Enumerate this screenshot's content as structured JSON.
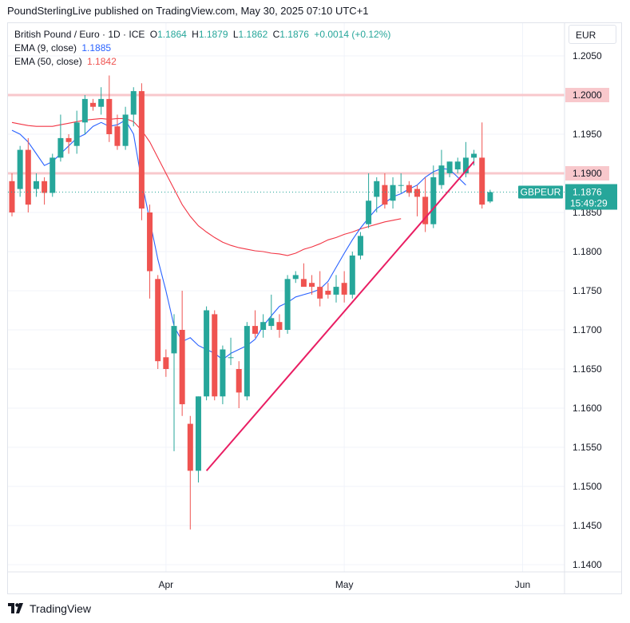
{
  "header": {
    "publish_text": "PoundSterlingLive published on TradingView.com, May 30, 2025 07:10 UTC+1"
  },
  "legend": {
    "symbol": "British Pound / Euro · 1D · ICE",
    "o_label": "O",
    "o_value": "1.1864",
    "h_label": "H",
    "h_value": "1.1879",
    "l_label": "L",
    "l_value": "1.1862",
    "c_label": "C",
    "c_value": "1.1876",
    "change": "+0.0014 (+0.12%)",
    "ema9_label": "EMA (9, close)",
    "ema9_value": "1.1885",
    "ema50_label": "EMA (50, close)",
    "ema50_value": "1.1842"
  },
  "currency": "EUR",
  "footer": {
    "brand": "TradingView"
  },
  "colors": {
    "up": "#26a69a",
    "down": "#ef5350",
    "ema9": "#2962ff",
    "ema50": "#f23645",
    "hline": "#f8c8cc",
    "trendline": "#e91e63",
    "grid": "#f0f3fa"
  },
  "chart_data": {
    "type": "candlestick",
    "ylim": [
      1.138,
      1.213
    ],
    "y_ticks": [
      "1.2050",
      "1.2000",
      "1.1950",
      "1.1900",
      "1.1850",
      "1.1800",
      "1.1750",
      "1.1700",
      "1.1650",
      "1.1600",
      "1.1550",
      "1.1500",
      "1.1450",
      "1.1400"
    ],
    "x_ticks": [
      {
        "label": "Apr",
        "index": 19
      },
      {
        "label": "May",
        "index": 41
      },
      {
        "label": "Jun",
        "index": 63
      }
    ],
    "candles": [
      {
        "o": 1.189,
        "h": 1.19,
        "l": 1.1845,
        "c": 1.185
      },
      {
        "o": 1.188,
        "h": 1.1935,
        "l": 1.187,
        "c": 1.193
      },
      {
        "o": 1.193,
        "h": 1.1945,
        "l": 1.185,
        "c": 1.186
      },
      {
        "o": 1.188,
        "h": 1.19,
        "l": 1.187,
        "c": 1.189
      },
      {
        "o": 1.189,
        "h": 1.1895,
        "l": 1.186,
        "c": 1.1875
      },
      {
        "o": 1.1875,
        "h": 1.1925,
        "l": 1.187,
        "c": 1.192
      },
      {
        "o": 1.192,
        "h": 1.1975,
        "l": 1.1915,
        "c": 1.1945
      },
      {
        "o": 1.1945,
        "h": 1.195,
        "l": 1.1925,
        "c": 1.194
      },
      {
        "o": 1.1935,
        "h": 1.198,
        "l": 1.1925,
        "c": 1.1965
      },
      {
        "o": 1.1965,
        "h": 1.2,
        "l": 1.195,
        "c": 1.1995
      },
      {
        "o": 1.199,
        "h": 1.1995,
        "l": 1.198,
        "c": 1.1985
      },
      {
        "o": 1.1985,
        "h": 1.201,
        "l": 1.1975,
        "c": 1.1995
      },
      {
        "o": 1.1995,
        "h": 1.2025,
        "l": 1.194,
        "c": 1.195
      },
      {
        "o": 1.196,
        "h": 1.1975,
        "l": 1.193,
        "c": 1.1935
      },
      {
        "o": 1.1935,
        "h": 1.1985,
        "l": 1.193,
        "c": 1.1975
      },
      {
        "o": 1.1975,
        "h": 1.201,
        "l": 1.196,
        "c": 1.2005
      },
      {
        "o": 1.2005,
        "h": 1.2015,
        "l": 1.184,
        "c": 1.1855
      },
      {
        "o": 1.185,
        "h": 1.186,
        "l": 1.174,
        "c": 1.1775
      },
      {
        "o": 1.1765,
        "h": 1.177,
        "l": 1.165,
        "c": 1.166
      },
      {
        "o": 1.1665,
        "h": 1.1675,
        "l": 1.164,
        "c": 1.165
      },
      {
        "o": 1.167,
        "h": 1.172,
        "l": 1.1545,
        "c": 1.1705
      },
      {
        "o": 1.17,
        "h": 1.175,
        "l": 1.159,
        "c": 1.1605
      },
      {
        "o": 1.158,
        "h": 1.159,
        "l": 1.1445,
        "c": 1.152
      },
      {
        "o": 1.152,
        "h": 1.1615,
        "l": 1.1505,
        "c": 1.1615
      },
      {
        "o": 1.1615,
        "h": 1.173,
        "l": 1.161,
        "c": 1.1725
      },
      {
        "o": 1.172,
        "h": 1.1725,
        "l": 1.161,
        "c": 1.1615
      },
      {
        "o": 1.1615,
        "h": 1.168,
        "l": 1.1605,
        "c": 1.1675
      },
      {
        "o": 1.1665,
        "h": 1.169,
        "l": 1.1655,
        "c": 1.1665
      },
      {
        "o": 1.165,
        "h": 1.166,
        "l": 1.16,
        "c": 1.162
      },
      {
        "o": 1.1615,
        "h": 1.171,
        "l": 1.161,
        "c": 1.1705
      },
      {
        "o": 1.1705,
        "h": 1.1725,
        "l": 1.169,
        "c": 1.1695
      },
      {
        "o": 1.17,
        "h": 1.172,
        "l": 1.169,
        "c": 1.171
      },
      {
        "o": 1.1705,
        "h": 1.1745,
        "l": 1.17,
        "c": 1.1715
      },
      {
        "o": 1.171,
        "h": 1.172,
        "l": 1.169,
        "c": 1.17
      },
      {
        "o": 1.17,
        "h": 1.177,
        "l": 1.1695,
        "c": 1.1765
      },
      {
        "o": 1.1765,
        "h": 1.1775,
        "l": 1.176,
        "c": 1.177
      },
      {
        "o": 1.1765,
        "h": 1.1785,
        "l": 1.176,
        "c": 1.1755
      },
      {
        "o": 1.176,
        "h": 1.177,
        "l": 1.1745,
        "c": 1.1755
      },
      {
        "o": 1.1755,
        "h": 1.1775,
        "l": 1.173,
        "c": 1.174
      },
      {
        "o": 1.175,
        "h": 1.176,
        "l": 1.174,
        "c": 1.1745
      },
      {
        "o": 1.1745,
        "h": 1.177,
        "l": 1.1735,
        "c": 1.1755
      },
      {
        "o": 1.176,
        "h": 1.1775,
        "l": 1.1735,
        "c": 1.1745
      },
      {
        "o": 1.1745,
        "h": 1.18,
        "l": 1.174,
        "c": 1.1795
      },
      {
        "o": 1.1795,
        "h": 1.1825,
        "l": 1.179,
        "c": 1.182
      },
      {
        "o": 1.1835,
        "h": 1.19,
        "l": 1.183,
        "c": 1.1865
      },
      {
        "o": 1.187,
        "h": 1.1895,
        "l": 1.185,
        "c": 1.189
      },
      {
        "o": 1.1885,
        "h": 1.19,
        "l": 1.1855,
        "c": 1.186
      },
      {
        "o": 1.1865,
        "h": 1.1895,
        "l": 1.1855,
        "c": 1.1885
      },
      {
        "o": 1.1885,
        "h": 1.19,
        "l": 1.1875,
        "c": 1.1885
      },
      {
        "o": 1.1885,
        "h": 1.189,
        "l": 1.187,
        "c": 1.1875
      },
      {
        "o": 1.188,
        "h": 1.1885,
        "l": 1.1845,
        "c": 1.187
      },
      {
        "o": 1.187,
        "h": 1.1895,
        "l": 1.1825,
        "c": 1.1835
      },
      {
        "o": 1.1835,
        "h": 1.191,
        "l": 1.183,
        "c": 1.1895
      },
      {
        "o": 1.1885,
        "h": 1.193,
        "l": 1.188,
        "c": 1.191
      },
      {
        "o": 1.19,
        "h": 1.1915,
        "l": 1.1895,
        "c": 1.1915
      },
      {
        "o": 1.1905,
        "h": 1.192,
        "l": 1.19,
        "c": 1.1915
      },
      {
        "o": 1.19,
        "h": 1.194,
        "l": 1.1895,
        "c": 1.192
      },
      {
        "o": 1.192,
        "h": 1.193,
        "l": 1.191,
        "c": 1.1925
      },
      {
        "o": 1.192,
        "h": 1.1965,
        "l": 1.1855,
        "c": 1.186
      },
      {
        "o": 1.1864,
        "h": 1.1879,
        "l": 1.1862,
        "c": 1.1876
      }
    ],
    "ema9": [
      1.1955,
      1.195,
      1.194,
      1.1925,
      1.191,
      1.1915,
      1.1925,
      1.1935,
      1.1945,
      1.195,
      1.196,
      1.1965,
      1.196,
      1.1962,
      1.1968,
      1.195,
      1.189,
      1.184,
      1.179,
      1.175,
      1.1705,
      1.1685,
      1.169,
      1.168,
      1.1675,
      1.167,
      1.1662,
      1.167,
      1.1675,
      1.168,
      1.1688,
      1.1705,
      1.1718,
      1.173,
      1.1735,
      1.1742,
      1.1745,
      1.1748,
      1.1752,
      1.1762,
      1.178,
      1.1798,
      1.1815,
      1.183,
      1.1843,
      1.1855,
      1.1862,
      1.187,
      1.1874,
      1.188,
      1.1885,
      1.1895,
      1.1902,
      1.1906,
      1.1905,
      1.1895,
      1.1885
    ],
    "ema50": [
      1.1965,
      1.1963,
      1.1961,
      1.196,
      1.196,
      1.196,
      1.1962,
      1.1964,
      1.1966,
      1.1968,
      1.1969,
      1.197,
      1.1969,
      1.197,
      1.197,
      1.1966,
      1.1955,
      1.194,
      1.192,
      1.19,
      1.188,
      1.186,
      1.1845,
      1.1833,
      1.1825,
      1.1818,
      1.1812,
      1.1808,
      1.1805,
      1.1803,
      1.1801,
      1.18,
      1.1798,
      1.1797,
      1.1795,
      1.1798,
      1.1803,
      1.1806,
      1.181,
      1.1815,
      1.1818,
      1.1822,
      1.1825,
      1.1829,
      1.1832,
      1.1835,
      1.1838,
      1.184,
      1.1842
    ],
    "horizontal_lines": [
      {
        "value": 1.2,
        "label": "1.2000"
      },
      {
        "value": 1.19,
        "label": "1.1900"
      }
    ],
    "trendline": {
      "from_index": 24,
      "from_value": 1.152,
      "to_index": 57,
      "to_value": 1.1915
    },
    "last_price": {
      "value": 1.1876,
      "label": "1.1876",
      "symbol": "GBPEUR",
      "countdown": "15:49:29"
    }
  }
}
